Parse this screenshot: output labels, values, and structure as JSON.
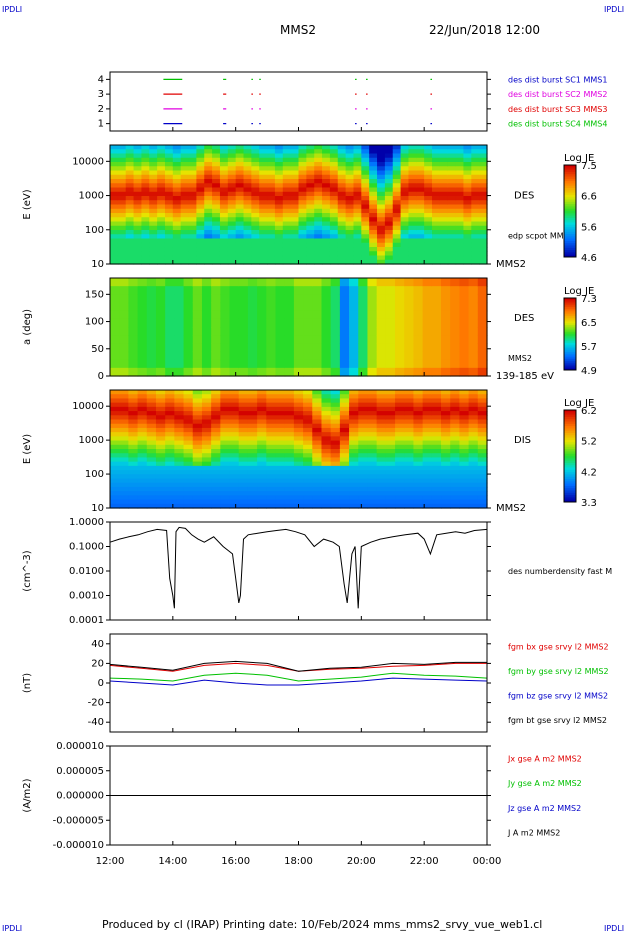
{
  "header": {
    "corner_tl": "IPDLI",
    "corner_tr": "IPDLI",
    "corner_bl": "IPDLI",
    "corner_br": "IPDLI",
    "spacecraft": "MMS2",
    "date": "22/Jun/2018 12:00",
    "footer": "Produced by cl (IRAP)   Printing date: 10/Feb/2024   mms_mms2_srvy_vue_web1.cl"
  },
  "colors": {
    "c1": "#0000c8",
    "c2": "#e000e0",
    "c3": "#e00000",
    "c4": "#00c000",
    "black": "#000000"
  },
  "time_axis": {
    "start_hour": 12,
    "end_hour": 24,
    "ticks": [
      "12:00",
      "14:00",
      "16:00",
      "18:00",
      "20:00",
      "22:00",
      "00:00"
    ]
  },
  "chart_data": [
    {
      "type": "scatter",
      "id": "burst",
      "ylabel": "",
      "ylim": [
        0.5,
        4.5
      ],
      "yticks": [
        "1",
        "2",
        "3",
        "4"
      ],
      "right_labels": [
        {
          "text": "des dist burst SC1 MMS1",
          "color": "#0000c8"
        },
        {
          "text": "des dist burst SC2 MMS2",
          "color": "#e000e0"
        },
        {
          "text": "des dist burst SC3 MMS3",
          "color": "#e00000"
        },
        {
          "text": "des dist burst SC4 MMS4",
          "color": "#00c000"
        }
      ],
      "series": [
        {
          "level": 4,
          "color": "#00c000",
          "segments": [
            [
              13.7,
              14.3
            ],
            [
              15.6,
              15.7
            ],
            [
              16.5,
              16.55
            ],
            [
              16.75,
              16.8
            ],
            [
              19.8,
              19.85
            ],
            [
              20.15,
              20.2
            ],
            [
              22.2,
              22.25
            ]
          ]
        },
        {
          "level": 3,
          "color": "#e00000",
          "segments": [
            [
              13.7,
              14.3
            ],
            [
              15.6,
              15.7
            ],
            [
              16.5,
              16.55
            ],
            [
              16.75,
              16.8
            ],
            [
              19.8,
              19.85
            ],
            [
              20.15,
              20.2
            ],
            [
              22.2,
              22.25
            ]
          ]
        },
        {
          "level": 2,
          "color": "#e000e0",
          "segments": [
            [
              13.7,
              14.3
            ],
            [
              15.6,
              15.7
            ],
            [
              16.5,
              16.55
            ],
            [
              16.75,
              16.8
            ],
            [
              19.8,
              19.85
            ],
            [
              20.15,
              20.2
            ],
            [
              22.2,
              22.25
            ]
          ]
        },
        {
          "level": 1,
          "color": "#0000c8",
          "segments": [
            [
              13.7,
              14.3
            ],
            [
              15.6,
              15.7
            ],
            [
              16.5,
              16.55
            ],
            [
              16.75,
              16.8
            ],
            [
              19.8,
              19.85
            ],
            [
              20.15,
              20.2
            ],
            [
              22.2,
              22.25
            ]
          ]
        }
      ]
    },
    {
      "type": "heatmap",
      "id": "des_energy",
      "ylabel": "E (eV)",
      "yscale": "log",
      "ylim": [
        10,
        30000
      ],
      "yticks": [
        "10",
        "100",
        "1000",
        "10000"
      ],
      "right_label": "DES",
      "sub_label": "edp scpot MMS2",
      "bottom_label": "MMS2",
      "colorbar": {
        "title": "Log JE",
        "ticks": [
          "7.5",
          "6.6",
          "5.6",
          "4.6"
        ],
        "min": 4.6,
        "max": 7.5
      },
      "peak_log_energy": [
        3.0,
        3.0,
        3.1,
        3.0,
        3.1,
        3.0,
        3.1,
        3.0,
        2.9,
        3.0,
        3.0,
        3.2,
        3.4,
        3.3,
        3.1,
        3.2,
        3.3,
        3.2,
        3.1,
        3.0,
        3.0,
        2.9,
        3.0,
        3.0,
        3.2,
        3.3,
        3.4,
        3.3,
        3.2,
        3.0,
        2.9,
        3.0,
        2.7,
        2.3,
        2.0,
        2.2,
        2.6,
        3.1,
        3.2,
        3.2,
        3.1,
        3.0,
        3.0,
        3.0,
        3.0,
        2.9,
        3.0,
        3.0
      ]
    },
    {
      "type": "heatmap",
      "id": "pitch_angle",
      "ylabel": "a (deg)",
      "ylim": [
        0,
        180
      ],
      "yticks": [
        "0",
        "50",
        "100",
        "150"
      ],
      "right_label": "DES",
      "sub_label": "MMS2",
      "bottom_label": "139-185 eV",
      "colorbar": {
        "title": "Log JE",
        "ticks": [
          "7.3",
          "6.5",
          "5.7",
          "4.9"
        ],
        "min": 4.9,
        "max": 7.3
      },
      "level_vs_time": [
        0.55,
        0.55,
        0.52,
        0.5,
        0.48,
        0.5,
        0.45,
        0.45,
        0.5,
        0.55,
        0.5,
        0.55,
        0.52,
        0.5,
        0.5,
        0.48,
        0.5,
        0.52,
        0.5,
        0.5,
        0.55,
        0.55,
        0.55,
        0.5,
        0.45,
        0.2,
        0.3,
        0.45,
        0.6,
        0.65,
        0.65,
        0.68,
        0.7,
        0.72,
        0.75,
        0.75,
        0.78,
        0.8,
        0.82,
        0.8,
        0.85
      ]
    },
    {
      "type": "heatmap",
      "id": "dis_energy",
      "ylabel": "E (eV)",
      "yscale": "log",
      "ylim": [
        10,
        30000
      ],
      "yticks": [
        "10",
        "100",
        "1000",
        "10000"
      ],
      "right_label": "DIS",
      "bottom_label": "MMS2",
      "colorbar": {
        "title": "Log JE",
        "ticks": [
          "6.2",
          "5.2",
          "4.2",
          "3.3"
        ],
        "min": 3.3,
        "max": 6.2
      },
      "peak_log_energy": [
        3.9,
        3.9,
        3.8,
        3.9,
        3.8,
        3.7,
        3.8,
        3.7,
        3.6,
        3.4,
        3.5,
        3.7,
        3.9,
        3.9,
        3.8,
        3.8,
        3.9,
        3.8,
        3.8,
        3.8,
        3.7,
        3.6,
        3.3,
        3.0,
        2.9,
        3.3,
        3.8,
        3.9,
        3.9,
        3.8,
        3.8,
        3.9,
        3.9,
        3.8,
        3.9,
        3.9,
        3.8,
        3.9,
        3.8,
        3.9,
        3.8
      ]
    },
    {
      "type": "line",
      "id": "density",
      "ylabel": "(cm^-3)",
      "yscale": "log",
      "ylim": [
        0.0001,
        1.0
      ],
      "yticks": [
        "0.0001",
        "0.0010",
        "0.0100",
        "0.1000",
        "1.0000"
      ],
      "right_labels": [
        {
          "text": "des numberdensity fast M",
          "color": "#000000"
        }
      ],
      "series": [
        {
          "name": "des numberdensity fast M",
          "color": "#000000",
          "x": [
            12.0,
            12.3,
            12.6,
            12.9,
            13.2,
            13.5,
            13.8,
            13.9,
            14.0,
            14.05,
            14.1,
            14.2,
            14.4,
            14.6,
            14.8,
            15.0,
            15.3,
            15.6,
            15.9,
            16.0,
            16.1,
            16.15,
            16.25,
            16.4,
            16.7,
            17.0,
            17.3,
            17.6,
            17.9,
            18.2,
            18.5,
            18.8,
            19.1,
            19.3,
            19.45,
            19.55,
            19.7,
            19.8,
            19.9,
            20.0,
            20.3,
            20.6,
            21.0,
            21.4,
            21.8,
            22.0,
            22.2,
            22.4,
            22.7,
            23.0,
            23.3,
            23.6,
            24.0
          ],
          "y": [
            0.15,
            0.2,
            0.25,
            0.3,
            0.4,
            0.5,
            0.45,
            0.005,
            0.001,
            0.0003,
            0.4,
            0.6,
            0.55,
            0.3,
            0.2,
            0.15,
            0.25,
            0.1,
            0.05,
            0.005,
            0.0005,
            0.001,
            0.2,
            0.3,
            0.35,
            0.4,
            0.45,
            0.5,
            0.4,
            0.3,
            0.1,
            0.2,
            0.15,
            0.1,
            0.003,
            0.0005,
            0.05,
            0.1,
            0.0003,
            0.1,
            0.15,
            0.2,
            0.25,
            0.3,
            0.35,
            0.2,
            0.05,
            0.3,
            0.35,
            0.4,
            0.35,
            0.45,
            0.5
          ]
        }
      ]
    },
    {
      "type": "line",
      "id": "magnetic_field",
      "ylabel": "(nT)",
      "ylim": [
        -50,
        50
      ],
      "yticks": [
        "-40",
        "-20",
        "0",
        "20",
        "40"
      ],
      "right_labels": [
        {
          "text": "fgm bx gse srvy l2 MMS2",
          "color": "#e00000"
        },
        {
          "text": "fgm by gse srvy l2 MMS2",
          "color": "#00c000"
        },
        {
          "text": "fgm bz gse srvy l2 MMS2",
          "color": "#0000c8"
        },
        {
          "text": "fgm bt gse srvy l2 MMS2",
          "color": "#000000"
        }
      ],
      "series": [
        {
          "name": "fgm bx gse srvy l2 MMS2",
          "color": "#e00000",
          "x": [
            12,
            13,
            14,
            15,
            16,
            17,
            18,
            19,
            20,
            21,
            22,
            23,
            24
          ],
          "y": [
            18,
            15,
            12,
            18,
            20,
            18,
            12,
            14,
            15,
            17,
            18,
            20,
            20
          ]
        },
        {
          "name": "fgm by gse srvy l2 MMS2",
          "color": "#00c000",
          "x": [
            12,
            13,
            14,
            15,
            16,
            17,
            18,
            19,
            20,
            21,
            22,
            23,
            24
          ],
          "y": [
            5,
            4,
            2,
            8,
            10,
            8,
            2,
            4,
            6,
            10,
            8,
            7,
            5
          ]
        },
        {
          "name": "fgm bz gse srvy l2 MMS2",
          "color": "#0000c8",
          "x": [
            12,
            13,
            14,
            15,
            16,
            17,
            18,
            19,
            20,
            21,
            22,
            23,
            24
          ],
          "y": [
            2,
            0,
            -2,
            3,
            0,
            -2,
            -2,
            0,
            2,
            5,
            4,
            3,
            2
          ]
        },
        {
          "name": "fgm bt gse srvy l2 MMS2",
          "color": "#000000",
          "x": [
            12,
            13,
            14,
            15,
            16,
            17,
            18,
            19,
            20,
            21,
            22,
            23,
            24
          ],
          "y": [
            19,
            16,
            13,
            20,
            22,
            20,
            12,
            15,
            16,
            20,
            19,
            21,
            21
          ]
        }
      ]
    },
    {
      "type": "line",
      "id": "current_density",
      "ylabel": "(A/m2)",
      "ylim": [
        -1e-05,
        1e-05
      ],
      "yticks": [
        "-0.000010",
        "-0.000005",
        "0.000000",
        "0.000005",
        "0.000010"
      ],
      "right_labels": [
        {
          "text": "Jx gse A m2 MMS2",
          "color": "#e00000"
        },
        {
          "text": "Jy gse A m2 MMS2",
          "color": "#00c000"
        },
        {
          "text": "Jz gse A m2 MMS2",
          "color": "#0000c8"
        },
        {
          "text": "J A m2 MMS2",
          "color": "#000000"
        }
      ],
      "series": [
        {
          "name": "J A m2 MMS2",
          "color": "#000000",
          "x": [
            12,
            14,
            16,
            18,
            20,
            22,
            24
          ],
          "y": [
            0,
            0,
            0,
            0,
            0,
            0,
            0
          ]
        }
      ]
    }
  ]
}
